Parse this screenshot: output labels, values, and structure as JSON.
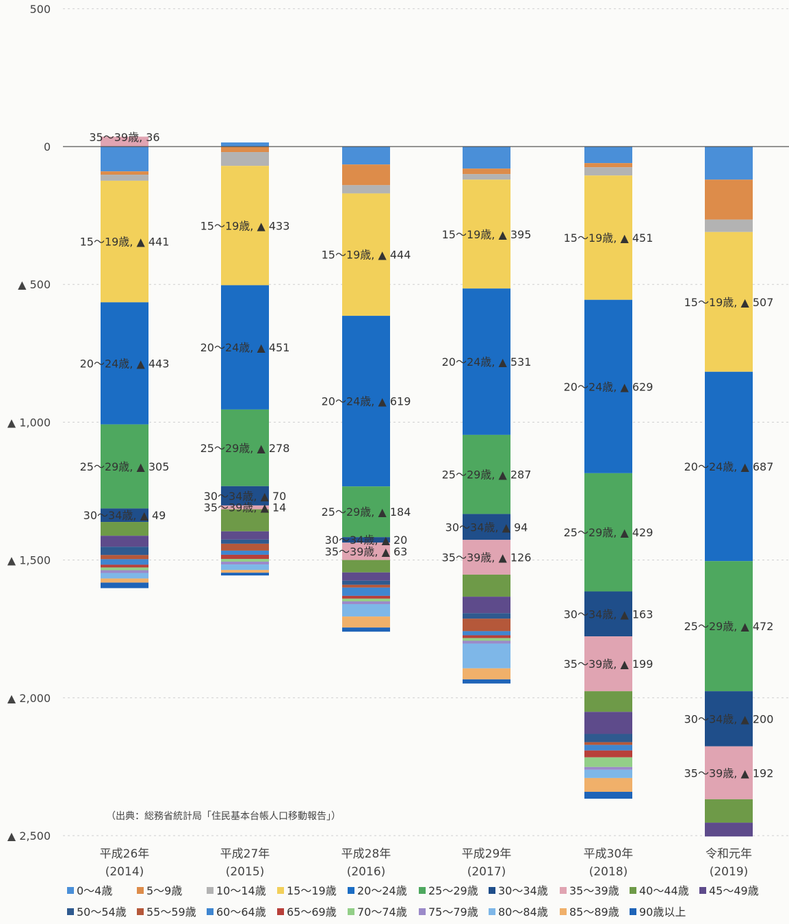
{
  "chart_data": {
    "type": "bar",
    "stacked": true,
    "title": "",
    "xlabel": "",
    "ylabel": "",
    "ylim": [
      -2500,
      500
    ],
    "y_ticks": [
      {
        "value": 500,
        "label": "500"
      },
      {
        "value": 0,
        "label": "0"
      },
      {
        "value": -500,
        "label": "▲ 500"
      },
      {
        "value": -1000,
        "label": "▲ 1,000"
      },
      {
        "value": -1500,
        "label": "▲ 1,500"
      },
      {
        "value": -2000,
        "label": "▲ 2,000"
      },
      {
        "value": -2500,
        "label": "▲ 2,500"
      }
    ],
    "grid": true,
    "legend_position": "bottom",
    "categories": [
      {
        "label": "平成26年",
        "sub": "(2014)"
      },
      {
        "label": "平成27年",
        "sub": "(2015)"
      },
      {
        "label": "平成28年",
        "sub": "(2016)"
      },
      {
        "label": "平成29年",
        "sub": "(2017)"
      },
      {
        "label": "平成30年",
        "sub": "(2018)"
      },
      {
        "label": "令和元年",
        "sub": "(2019)"
      }
    ],
    "series": [
      {
        "name": "0〜4歳",
        "color": "#4a8fd8",
        "values": [
          -90,
          15,
          -65,
          -80,
          -60,
          -120
        ]
      },
      {
        "name": "5〜9歳",
        "color": "#dd8c4a",
        "values": [
          -12,
          -20,
          -75,
          -20,
          -15,
          -145
        ]
      },
      {
        "name": "10〜14歳",
        "color": "#b3b3b3",
        "values": [
          -22,
          -50,
          -30,
          -20,
          -30,
          -45
        ]
      },
      {
        "name": "15〜19歳",
        "color": "#f2d05a",
        "values": [
          -441,
          -433,
          -444,
          -395,
          -451,
          -507
        ]
      },
      {
        "name": "20〜24歳",
        "color": "#1b6dc4",
        "values": [
          -443,
          -451,
          -619,
          -531,
          -629,
          -687
        ]
      },
      {
        "name": "25〜29歳",
        "color": "#4ea85f",
        "values": [
          -305,
          -278,
          -184,
          -287,
          -429,
          -472
        ]
      },
      {
        "name": "30〜34歳",
        "color": "#1f4e8a",
        "values": [
          -49,
          -70,
          -20,
          -94,
          -163,
          -200
        ]
      },
      {
        "name": "35〜39歳",
        "color": "#e0a4b2",
        "values": [
          36,
          -14,
          -63,
          -126,
          -199,
          -192
        ]
      },
      {
        "name": "40〜44歳",
        "color": "#6e9a48",
        "values": [
          -50,
          -80,
          -45,
          -80,
          -75,
          -85
        ]
      },
      {
        "name": "45〜49歳",
        "color": "#5e4b8b",
        "values": [
          -40,
          -30,
          -30,
          -60,
          -80,
          -50
        ]
      },
      {
        "name": "50〜54歳",
        "color": "#2f5a8f",
        "values": [
          -30,
          -15,
          -15,
          -20,
          -30,
          0
        ]
      },
      {
        "name": "55〜59歳",
        "color": "#b5583a",
        "values": [
          -15,
          -25,
          -10,
          -45,
          -10,
          0
        ]
      },
      {
        "name": "60〜64歳",
        "color": "#3f86d0",
        "values": [
          -20,
          -15,
          -30,
          -15,
          -20,
          0
        ]
      },
      {
        "name": "65〜69歳",
        "color": "#b8403a",
        "values": [
          -10,
          -15,
          -10,
          -10,
          -25,
          0
        ]
      },
      {
        "name": "70〜74歳",
        "color": "#93cf88",
        "values": [
          -10,
          -10,
          -10,
          -10,
          -35,
          0
        ]
      },
      {
        "name": "75〜79歳",
        "color": "#9b8ac9",
        "values": [
          -10,
          -10,
          -10,
          -10,
          -10,
          0
        ]
      },
      {
        "name": "80〜84歳",
        "color": "#7eb7e8",
        "values": [
          -20,
          -20,
          -45,
          -90,
          -30,
          0
        ]
      },
      {
        "name": "85〜89歳",
        "color": "#f0b06a",
        "values": [
          -15,
          -10,
          -40,
          -40,
          -50,
          0
        ]
      },
      {
        "name": "90歳以上",
        "color": "#1f64b8",
        "values": [
          -20,
          -10,
          -15,
          -15,
          -25,
          0
        ]
      }
    ],
    "annotations": [
      {
        "ci": 0,
        "series": "35〜39歳",
        "text": "35〜39歳, 36"
      },
      {
        "ci": 0,
        "series": "15〜19歳",
        "text": "15〜19歳, ▲ 441"
      },
      {
        "ci": 0,
        "series": "20〜24歳",
        "text": "20〜24歳, ▲ 443"
      },
      {
        "ci": 0,
        "series": "25〜29歳",
        "text": "25〜29歳, ▲ 305"
      },
      {
        "ci": 0,
        "series": "30〜34歳",
        "text": "30〜34歳, ▲ 49"
      },
      {
        "ci": 1,
        "series": "15〜19歳",
        "text": "15〜19歳, ▲ 433"
      },
      {
        "ci": 1,
        "series": "20〜24歳",
        "text": "20〜24歳, ▲ 451"
      },
      {
        "ci": 1,
        "series": "25〜29歳",
        "text": "25〜29歳, ▲ 278"
      },
      {
        "ci": 1,
        "series": "30〜34歳",
        "text": "30〜34歳, ▲ 70"
      },
      {
        "ci": 1,
        "series": "35〜39歳",
        "text": "35〜39歳, ▲ 14"
      },
      {
        "ci": 2,
        "series": "15〜19歳",
        "text": "15〜19歳, ▲ 444"
      },
      {
        "ci": 2,
        "series": "20〜24歳",
        "text": "20〜24歳, ▲ 619"
      },
      {
        "ci": 2,
        "series": "25〜29歳",
        "text": "25〜29歳, ▲ 184"
      },
      {
        "ci": 2,
        "series": "30〜34歳",
        "text": "30〜34歳, ▲ 20"
      },
      {
        "ci": 2,
        "series": "35〜39歳",
        "text": "35〜39歳, ▲ 63"
      },
      {
        "ci": 3,
        "series": "15〜19歳",
        "text": "15〜19歳, ▲ 395"
      },
      {
        "ci": 3,
        "series": "20〜24歳",
        "text": "20〜24歳, ▲ 531"
      },
      {
        "ci": 3,
        "series": "25〜29歳",
        "text": "25〜29歳, ▲ 287"
      },
      {
        "ci": 3,
        "series": "30〜34歳",
        "text": "30〜34歳, ▲ 94"
      },
      {
        "ci": 3,
        "series": "35〜39歳",
        "text": "35〜39歳, ▲ 126"
      },
      {
        "ci": 4,
        "series": "15〜19歳",
        "text": "15〜19歳, ▲ 451"
      },
      {
        "ci": 4,
        "series": "20〜24歳",
        "text": "20〜24歳, ▲ 629"
      },
      {
        "ci": 4,
        "series": "25〜29歳",
        "text": "25〜29歳, ▲ 429"
      },
      {
        "ci": 4,
        "series": "30〜34歳",
        "text": "30〜34歳, ▲ 163"
      },
      {
        "ci": 4,
        "series": "35〜39歳",
        "text": "35〜39歳, ▲ 199"
      },
      {
        "ci": 5,
        "series": "15〜19歳",
        "text": "15〜19歳, ▲ 507"
      },
      {
        "ci": 5,
        "series": "20〜24歳",
        "text": "20〜24歳, ▲ 687"
      },
      {
        "ci": 5,
        "series": "25〜29歳",
        "text": "25〜29歳, ▲ 472"
      },
      {
        "ci": 5,
        "series": "30〜34歳",
        "text": "30〜34歳, ▲ 200"
      },
      {
        "ci": 5,
        "series": "35〜39歳",
        "text": "35〜39歳, ▲ 192"
      }
    ],
    "source": "（出典：総務省統計局「住民基本台帳人口移動報告」）"
  }
}
